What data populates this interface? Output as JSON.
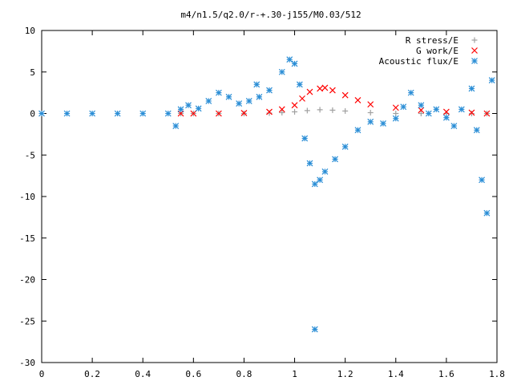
{
  "chart_data": {
    "type": "scatter",
    "title": "m4/n1.5/q2.0/r-+.30-j155/M0.03/512",
    "xlabel": "",
    "ylabel": "",
    "xlim": [
      0,
      1.8
    ],
    "ylim": [
      -30,
      10
    ],
    "x_ticks": [
      "0",
      "0.2",
      "0.4",
      "0.6",
      "0.8",
      "1",
      "1.2",
      "1.4",
      "1.6",
      "1.8"
    ],
    "y_ticks": [
      "10",
      "5",
      "0",
      "-5",
      "-10",
      "-15",
      "-20",
      "-25",
      "-30"
    ],
    "grid": false,
    "legend_position": "top-right",
    "series": [
      {
        "name": "R stress/E",
        "marker": "+",
        "color": "#a0a0a0",
        "points": [
          [
            0.55,
            0
          ],
          [
            0.6,
            0
          ],
          [
            0.7,
            0
          ],
          [
            0.8,
            0
          ],
          [
            0.9,
            0.05
          ],
          [
            0.95,
            0.1
          ],
          [
            1.0,
            0.2
          ],
          [
            1.05,
            0.35
          ],
          [
            1.1,
            0.45
          ],
          [
            1.15,
            0.4
          ],
          [
            1.2,
            0.3
          ],
          [
            1.3,
            0.1
          ],
          [
            1.4,
            0
          ],
          [
            1.5,
            0
          ],
          [
            1.6,
            0
          ],
          [
            1.7,
            0
          ],
          [
            1.76,
            0
          ]
        ]
      },
      {
        "name": "G work/E",
        "marker": "x",
        "color": "#ff0000",
        "points": [
          [
            0.55,
            0
          ],
          [
            0.6,
            0
          ],
          [
            0.7,
            0
          ],
          [
            0.8,
            0.05
          ],
          [
            0.9,
            0.2
          ],
          [
            0.95,
            0.5
          ],
          [
            1.0,
            1.0
          ],
          [
            1.03,
            1.8
          ],
          [
            1.06,
            2.6
          ],
          [
            1.1,
            3.0
          ],
          [
            1.12,
            3.1
          ],
          [
            1.15,
            2.8
          ],
          [
            1.2,
            2.2
          ],
          [
            1.25,
            1.6
          ],
          [
            1.3,
            1.1
          ],
          [
            1.4,
            0.7
          ],
          [
            1.5,
            0.4
          ],
          [
            1.6,
            0.2
          ],
          [
            1.7,
            0.1
          ],
          [
            1.76,
            0
          ]
        ]
      },
      {
        "name": "Acoustic flux/E",
        "marker": "*",
        "color": "#2b8ed6",
        "points": [
          [
            0.0,
            0
          ],
          [
            0.1,
            0
          ],
          [
            0.2,
            0
          ],
          [
            0.3,
            0
          ],
          [
            0.4,
            0
          ],
          [
            0.5,
            0
          ],
          [
            0.53,
            -1.5
          ],
          [
            0.55,
            0.5
          ],
          [
            0.58,
            1.0
          ],
          [
            0.62,
            0.6
          ],
          [
            0.66,
            1.5
          ],
          [
            0.7,
            2.5
          ],
          [
            0.74,
            2.0
          ],
          [
            0.78,
            1.2
          ],
          [
            0.82,
            1.5
          ],
          [
            0.86,
            2.0
          ],
          [
            0.9,
            2.8
          ],
          [
            0.95,
            5.0
          ],
          [
            0.98,
            6.5
          ],
          [
            1.0,
            6.0
          ],
          [
            1.02,
            3.5
          ],
          [
            1.04,
            -3.0
          ],
          [
            1.06,
            -6.0
          ],
          [
            1.08,
            -8.5
          ],
          [
            1.1,
            -8.0
          ],
          [
            1.12,
            -7.0
          ],
          [
            1.16,
            -5.5
          ],
          [
            1.2,
            -4.0
          ],
          [
            1.25,
            -2.0
          ],
          [
            1.3,
            -1.0
          ],
          [
            1.35,
            -1.2
          ],
          [
            1.4,
            -0.6
          ],
          [
            1.43,
            0.8
          ],
          [
            1.46,
            2.5
          ],
          [
            1.5,
            1.0
          ],
          [
            1.53,
            0
          ],
          [
            1.56,
            0.5
          ],
          [
            1.6,
            -0.5
          ],
          [
            1.63,
            -1.5
          ],
          [
            1.66,
            0.5
          ],
          [
            1.7,
            3.0
          ],
          [
            1.72,
            -2.0
          ],
          [
            1.74,
            -8.0
          ],
          [
            1.76,
            -12.0
          ],
          [
            1.78,
            4.0
          ],
          [
            0.85,
            3.5
          ],
          [
            1.08,
            -26.0
          ]
        ]
      }
    ]
  }
}
